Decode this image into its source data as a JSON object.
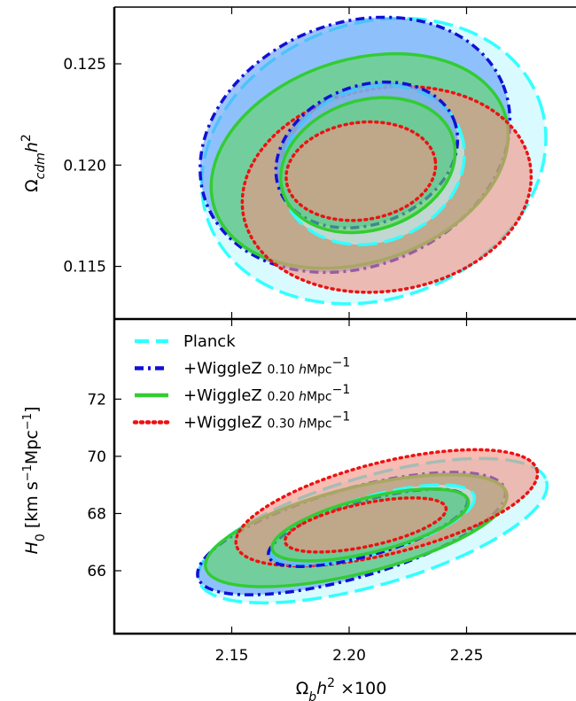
{
  "chart_data": [
    {
      "type": "scatter",
      "panel": "top",
      "ylabel": "Ω_cdm h²",
      "xlim": [
        2.1,
        2.3
      ],
      "ylim": [
        0.1124,
        0.1278
      ],
      "yticks": [
        "0.115",
        "0.120",
        "0.125"
      ],
      "ytick_values": [
        0.115,
        0.12,
        0.125
      ],
      "contours": [
        {
          "series": "Planck",
          "level": "95%",
          "cx": 2.2105,
          "cy": 0.1202,
          "rx": 0.075,
          "ry": 0.0068,
          "angle": -20
        },
        {
          "series": "+WiggleZ 0.10",
          "level": "95%",
          "cx": 2.2025,
          "cy": 0.121,
          "rx": 0.068,
          "ry": 0.006,
          "angle": -22
        },
        {
          "series": "+WiggleZ 0.20",
          "level": "95%",
          "cx": 2.2045,
          "cy": 0.1202,
          "rx": 0.065,
          "ry": 0.005,
          "angle": -18
        },
        {
          "series": "+WiggleZ 0.30",
          "level": "95%",
          "cx": 2.216,
          "cy": 0.1188,
          "rx": 0.062,
          "ry": 0.005,
          "angle": -10
        },
        {
          "series": "Planck",
          "level": "68%",
          "cx": 2.21,
          "cy": 0.12,
          "rx": 0.04,
          "ry": 0.0038,
          "angle": -22
        },
        {
          "series": "+WiggleZ 0.10",
          "level": "68%",
          "cx": 2.2075,
          "cy": 0.1205,
          "rx": 0.04,
          "ry": 0.0034,
          "angle": -22
        },
        {
          "series": "+WiggleZ 0.20",
          "level": "68%",
          "cx": 2.208,
          "cy": 0.12,
          "rx": 0.038,
          "ry": 0.0032,
          "angle": -18
        },
        {
          "series": "+WiggleZ 0.30",
          "level": "68%",
          "cx": 2.205,
          "cy": 0.1197,
          "rx": 0.032,
          "ry": 0.0024,
          "angle": -8
        }
      ]
    },
    {
      "type": "scatter",
      "panel": "bottom",
      "xlabel": "Ω_b h² ×100",
      "ylabel": "H_0 [km s⁻¹Mpc⁻¹]",
      "xlim": [
        2.1,
        2.3
      ],
      "ylim": [
        63.8,
        74.8
      ],
      "xticks": [
        "2.15",
        "2.20",
        "2.25"
      ],
      "xtick_values": [
        2.15,
        2.2,
        2.25
      ],
      "yticks": [
        "66",
        "68",
        "70",
        "72"
      ],
      "ytick_values": [
        66,
        68,
        70,
        72
      ],
      "contours": [
        {
          "series": "Planck",
          "level": "95%",
          "cx": 2.21,
          "cy": 67.4,
          "rx": 0.077,
          "ry": 1.9,
          "angle": -16
        },
        {
          "series": "+WiggleZ 0.10",
          "level": "95%",
          "cx": 2.201,
          "cy": 67.3,
          "rx": 0.068,
          "ry": 1.55,
          "angle": -16
        },
        {
          "series": "+WiggleZ 0.20",
          "level": "95%",
          "cx": 2.203,
          "cy": 67.4,
          "rx": 0.066,
          "ry": 1.5,
          "angle": -14
        },
        {
          "series": "+WiggleZ 0.30",
          "level": "95%",
          "cx": 2.216,
          "cy": 68.2,
          "rx": 0.066,
          "ry": 1.6,
          "angle": -14
        },
        {
          "series": "Planck",
          "level": "68%",
          "cx": 2.21,
          "cy": 67.6,
          "rx": 0.045,
          "ry": 1.0,
          "angle": -16
        },
        {
          "series": "+WiggleZ 0.10",
          "level": "68%",
          "cx": 2.208,
          "cy": 67.5,
          "rx": 0.044,
          "ry": 0.95,
          "angle": -16
        },
        {
          "series": "+WiggleZ 0.20",
          "level": "68%",
          "cx": 2.209,
          "cy": 67.6,
          "rx": 0.043,
          "ry": 0.95,
          "angle": -14
        },
        {
          "series": "+WiggleZ 0.30",
          "level": "68%",
          "cx": 2.207,
          "cy": 67.6,
          "rx": 0.035,
          "ry": 0.75,
          "angle": -12
        }
      ]
    }
  ],
  "legend": {
    "placement": "top-left of bottom panel",
    "entries": [
      {
        "series": "Planck",
        "main": "Planck",
        "sub": ""
      },
      {
        "series": "+WiggleZ 0.10",
        "main": "+WiggleZ ",
        "sub": "0.10 hMpc⁻¹"
      },
      {
        "series": "+WiggleZ 0.20",
        "main": "+WiggleZ ",
        "sub": "0.20 hMpc⁻¹"
      },
      {
        "series": "+WiggleZ 0.30",
        "main": "+WiggleZ ",
        "sub": "0.30 hMpc⁻¹"
      }
    ]
  },
  "styles": {
    "Planck": {
      "line": "#33ffff",
      "fill": "#bff8ff",
      "dash": "22,8"
    },
    "+WiggleZ 0.10": {
      "line": "#1010d8",
      "fill": "#5b9bf8",
      "dash": "10,5,3,5"
    },
    "+WiggleZ 0.20": {
      "line": "#33cc33",
      "fill": "#5fd85f",
      "dash": ""
    },
    "+WiggleZ 0.30": {
      "line": "#ee1111",
      "fill": "#f59080",
      "dash": "2,5"
    }
  }
}
